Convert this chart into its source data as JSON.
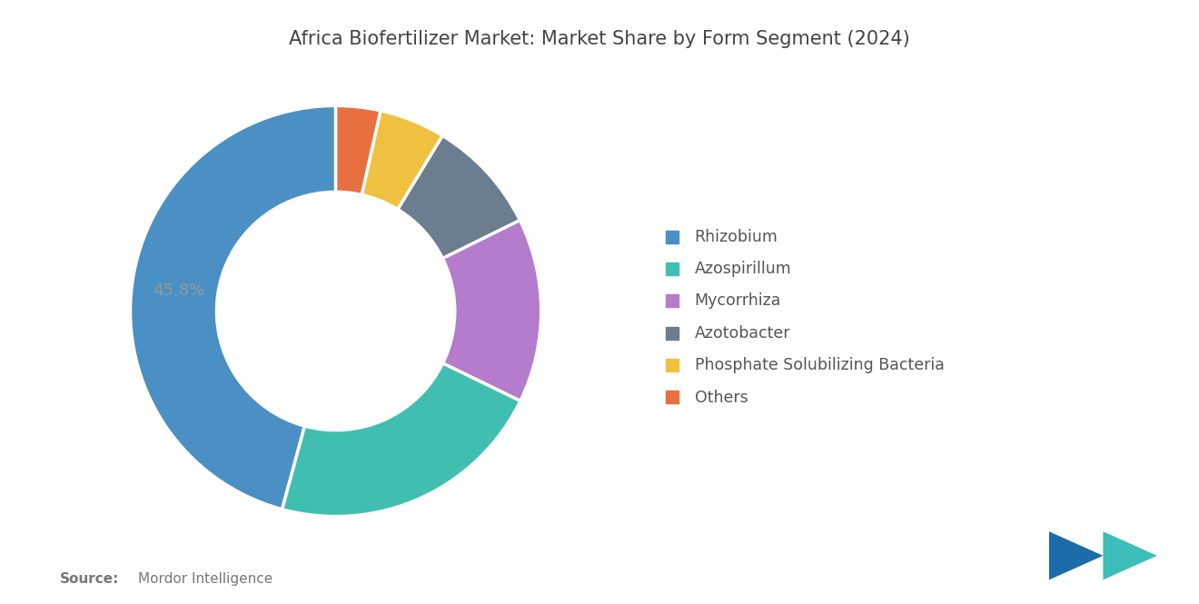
{
  "title": "Africa Biofertilizer Market: Market Share by Form Segment (2024)",
  "title_fontsize": 15,
  "title_color": "#444444",
  "labels": [
    "Rhizobium",
    "Azospirillum",
    "Mycorrhiza",
    "Azotobacter",
    "Phosphate Solubilizing Bacteria",
    "Others"
  ],
  "values": [
    45.8,
    22.0,
    14.5,
    9.0,
    5.2,
    3.5
  ],
  "colors": [
    "#4A90C4",
    "#40BFB0",
    "#B57BCC",
    "#6B7D8F",
    "#F0C040",
    "#E87040"
  ],
  "annotation_label": "45.8%",
  "annotation_color": "#999999",
  "source_bold": "Source:",
  "source_text": "Mordor Intelligence",
  "source_color": "#777777",
  "background_color": "#ffffff",
  "start_angle": 90,
  "donut_width": 0.42
}
